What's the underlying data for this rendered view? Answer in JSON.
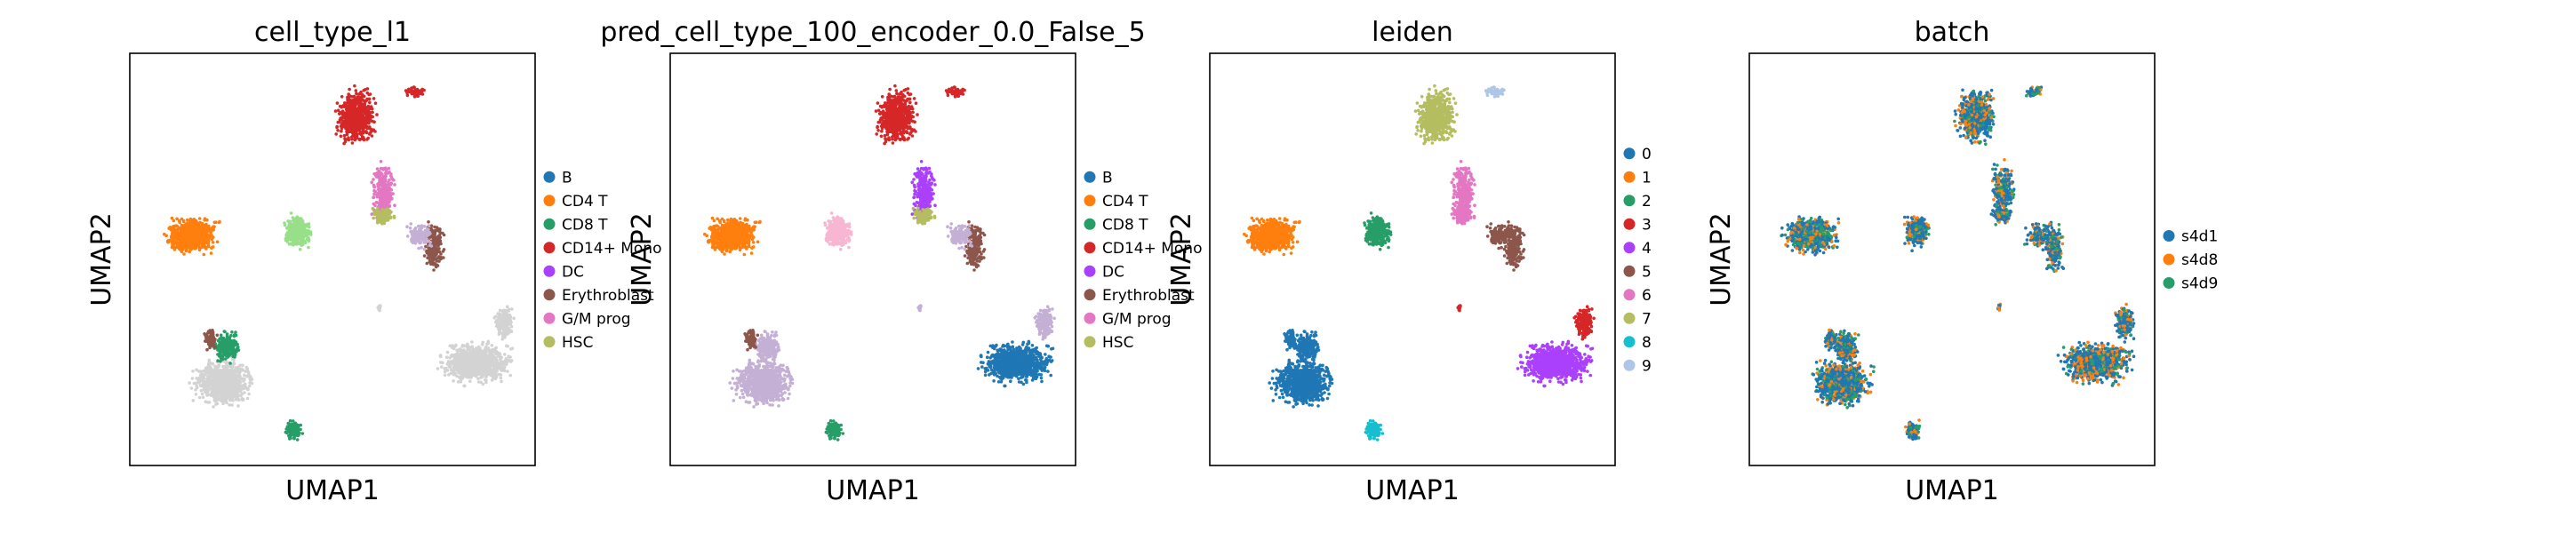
{
  "chart_data": [
    {
      "type": "scatter",
      "title": "cell_type_l1",
      "xlabel": "UMAP1",
      "ylabel": "UMAP2",
      "grid": false,
      "legend": "right",
      "series": [
        {
          "name": "B",
          "color": "#1f77b4"
        },
        {
          "name": "CD4 T",
          "color": "#ff7f0e"
        },
        {
          "name": "CD8 T",
          "color": "#279e68"
        },
        {
          "name": "CD14+ Mono",
          "color": "#d62728"
        },
        {
          "name": "DC",
          "color": "#aa40fc"
        },
        {
          "name": "Erythroblast",
          "color": "#8c564b"
        },
        {
          "name": "G/M prog",
          "color": "#e377c2"
        },
        {
          "name": "HSC",
          "color": "#b5bd61"
        }
      ]
    },
    {
      "type": "scatter",
      "title": "pred_cell_type_100_encoder_0.0_False_5",
      "xlabel": "UMAP1",
      "ylabel": "UMAP2",
      "grid": false,
      "legend": "right",
      "series": [
        {
          "name": "B",
          "color": "#1f77b4"
        },
        {
          "name": "CD4 T",
          "color": "#ff7f0e"
        },
        {
          "name": "CD8 T",
          "color": "#279e68"
        },
        {
          "name": "CD14+ Mono",
          "color": "#d62728"
        },
        {
          "name": "DC",
          "color": "#aa40fc"
        },
        {
          "name": "Erythroblast",
          "color": "#8c564b"
        },
        {
          "name": "G/M prog",
          "color": "#e377c2"
        },
        {
          "name": "HSC",
          "color": "#b5bd61"
        }
      ]
    },
    {
      "type": "scatter",
      "title": "leiden",
      "xlabel": "UMAP1",
      "ylabel": "UMAP2",
      "grid": false,
      "legend": "right",
      "series": [
        {
          "name": "0",
          "color": "#1f77b4"
        },
        {
          "name": "1",
          "color": "#ff7f0e"
        },
        {
          "name": "2",
          "color": "#279e68"
        },
        {
          "name": "3",
          "color": "#d62728"
        },
        {
          "name": "4",
          "color": "#aa40fc"
        },
        {
          "name": "5",
          "color": "#8c564b"
        },
        {
          "name": "6",
          "color": "#e377c2"
        },
        {
          "name": "7",
          "color": "#b5bd61"
        },
        {
          "name": "8",
          "color": "#17becf"
        },
        {
          "name": "9",
          "color": "#aec7e8"
        }
      ]
    },
    {
      "type": "scatter",
      "title": "batch",
      "xlabel": "UMAP1",
      "ylabel": "UMAP2",
      "grid": false,
      "legend": "right",
      "series": [
        {
          "name": "s4d1",
          "color": "#1f77b4"
        },
        {
          "name": "s4d8",
          "color": "#ff7f0e"
        },
        {
          "name": "s4d9",
          "color": "#279e68"
        }
      ]
    }
  ]
}
